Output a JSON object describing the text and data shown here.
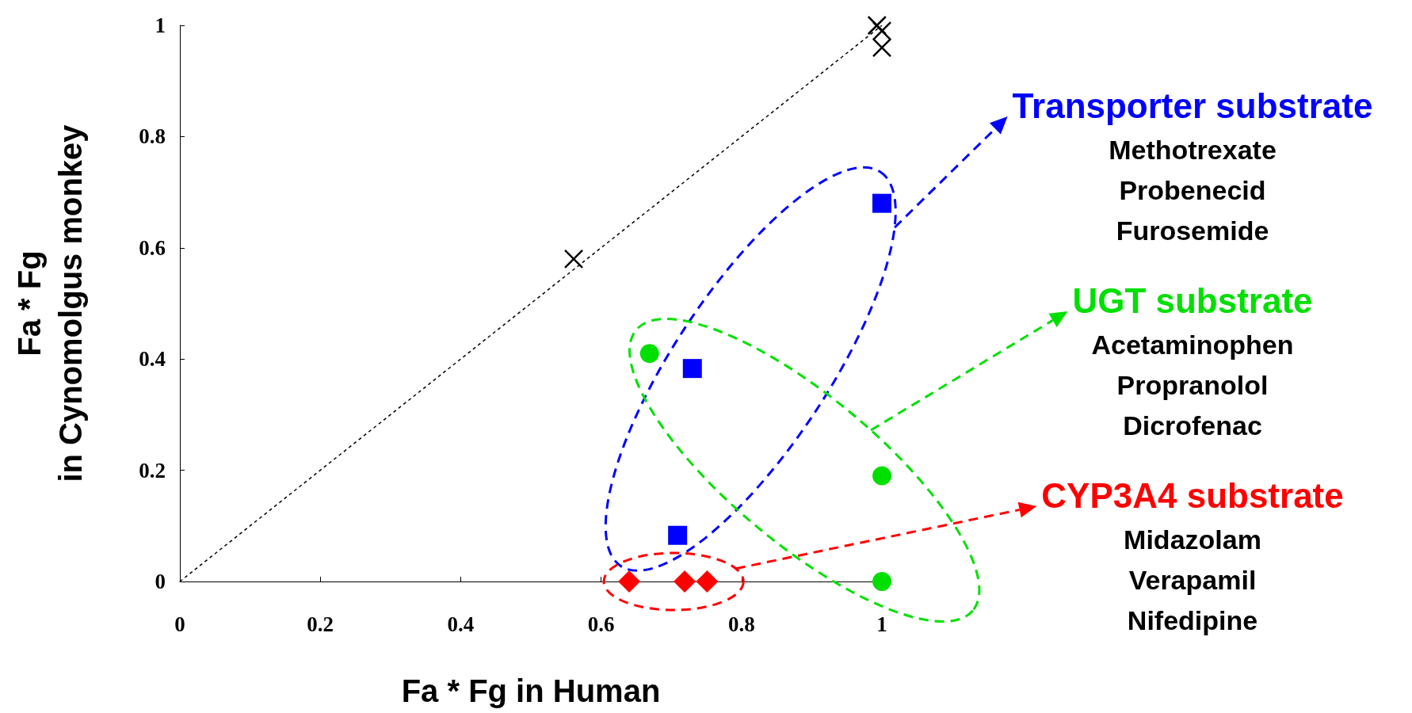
{
  "chart_data": {
    "type": "scatter",
    "xlabel": "Fa * Fg in Human",
    "ylabel": "Fa * Fg\nin Cynomolgus monkey",
    "xlim": [
      0,
      1
    ],
    "xticks": [
      0,
      0.2,
      0.4,
      0.6,
      0.8,
      1
    ],
    "ylim": [
      0,
      1
    ],
    "yticks": [
      0,
      0.2,
      0.4,
      0.6,
      0.8,
      1
    ],
    "grid": false,
    "legend": "right",
    "series": [
      {
        "type": "line",
        "color": "#000000",
        "line_style": "dashed",
        "marker": "none",
        "x": [
          0,
          1
        ],
        "values": [
          0,
          1
        ]
      },
      {
        "color": "#000000",
        "marker": "cross",
        "x": [
          0.561,
          0.993,
          1.0,
          1.0
        ],
        "values": [
          0.58,
          1.0,
          0.99,
          0.96
        ]
      },
      {
        "name": "Transporter substrate",
        "color": "#0000ff",
        "marker": "square",
        "x": [
          1.0,
          0.73,
          0.709
        ],
        "values": [
          0.68,
          0.383,
          0.083
        ]
      },
      {
        "name": "UGT substrate",
        "color": "#00e000",
        "marker": "circle",
        "x": [
          0.669,
          1.0,
          1.0
        ],
        "values": [
          0.41,
          0.19,
          0
        ]
      },
      {
        "name": "CYP3A4 substrate",
        "color": "#ff0000",
        "marker": "diamond",
        "x": [
          0.64,
          0.719,
          0.751
        ],
        "values": [
          0,
          0,
          0
        ]
      }
    ],
    "annotations": [
      "Methotrexate",
      "Probenecid",
      "Furosemide",
      "Acetaminophen",
      "Propranolol",
      "Dicrofenac",
      "Midazolam",
      "Verapamil",
      "Nifedipine"
    ]
  }
}
